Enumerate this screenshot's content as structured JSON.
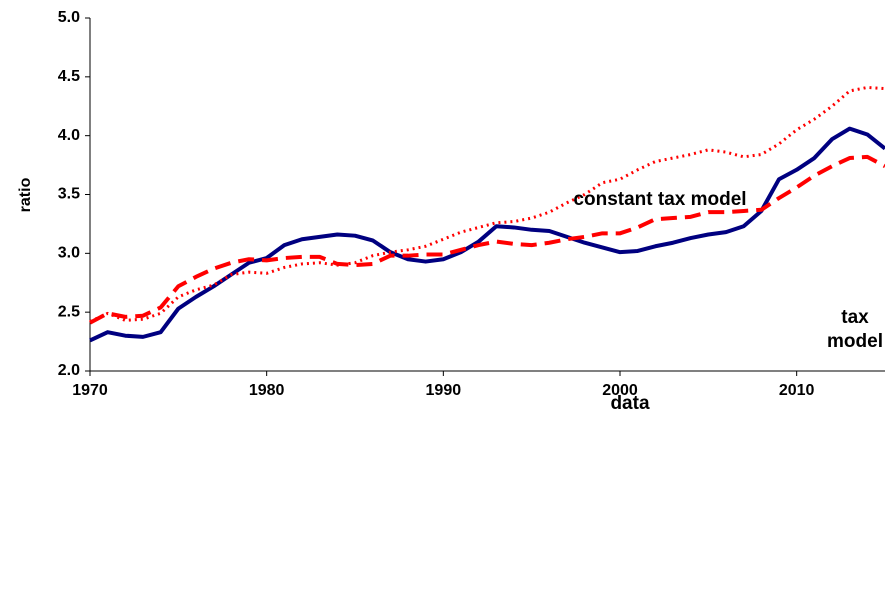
{
  "chart_data": {
    "type": "line",
    "y_label": "ratio",
    "x": [
      1970,
      1971,
      1972,
      1973,
      1974,
      1975,
      1976,
      1977,
      1978,
      1979,
      1980,
      1981,
      1982,
      1983,
      1984,
      1985,
      1986,
      1987,
      1988,
      1989,
      1990,
      1991,
      1992,
      1993,
      1994,
      1995,
      1996,
      1997,
      1998,
      1999,
      2000,
      2001,
      2002,
      2003,
      2004,
      2005,
      2006,
      2007,
      2008,
      2009,
      2010,
      2011,
      2012,
      2013,
      2014,
      2015
    ],
    "series": [
      {
        "name": "data",
        "color": "#000080",
        "style": "solid",
        "values": [
          2.26,
          2.33,
          2.3,
          2.29,
          2.33,
          2.53,
          2.63,
          2.72,
          2.82,
          2.92,
          2.96,
          3.07,
          3.12,
          3.14,
          3.16,
          3.15,
          3.11,
          3.01,
          2.95,
          2.93,
          2.95,
          3.01,
          3.1,
          3.23,
          3.22,
          3.2,
          3.19,
          3.14,
          3.09,
          3.05,
          3.01,
          3.02,
          3.06,
          3.09,
          3.13,
          3.16,
          3.18,
          3.23,
          3.36,
          3.63,
          3.71,
          3.81,
          3.97,
          4.06,
          4.01,
          3.89
        ]
      },
      {
        "name": "tax model",
        "color": "#ff0000",
        "style": "dashed",
        "values": [
          2.41,
          2.49,
          2.46,
          2.47,
          2.54,
          2.72,
          2.8,
          2.87,
          2.92,
          2.95,
          2.94,
          2.96,
          2.97,
          2.97,
          2.91,
          2.9,
          2.91,
          2.98,
          2.98,
          2.99,
          2.99,
          3.03,
          3.07,
          3.1,
          3.08,
          3.07,
          3.09,
          3.12,
          3.14,
          3.17,
          3.17,
          3.22,
          3.29,
          3.3,
          3.31,
          3.35,
          3.35,
          3.36,
          3.37,
          3.47,
          3.56,
          3.66,
          3.74,
          3.81,
          3.82,
          3.74
        ]
      },
      {
        "name": "constant tax model",
        "color": "#ff0000",
        "style": "dotted",
        "values": [
          2.42,
          2.49,
          2.43,
          2.44,
          2.49,
          2.63,
          2.69,
          2.73,
          2.82,
          2.84,
          2.83,
          2.88,
          2.91,
          2.92,
          2.9,
          2.92,
          2.98,
          3.01,
          3.03,
          3.06,
          3.12,
          3.18,
          3.22,
          3.26,
          3.27,
          3.3,
          3.35,
          3.43,
          3.5,
          3.6,
          3.63,
          3.71,
          3.78,
          3.81,
          3.84,
          3.88,
          3.86,
          3.82,
          3.84,
          3.93,
          4.05,
          4.14,
          4.25,
          4.38,
          4.41,
          4.4
        ]
      }
    ],
    "xlim": [
      1970,
      2015
    ],
    "xticks": [
      1970,
      1980,
      1990,
      2000,
      2010
    ],
    "ylim": [
      2,
      5
    ],
    "yticks": [
      {
        "value": 2,
        "label": "2.0"
      },
      {
        "value": 2.5,
        "label": "2.5"
      },
      {
        "value": 3,
        "label": "3.0"
      },
      {
        "value": 3.5,
        "label": "3.5"
      },
      {
        "value": 4,
        "label": "4.0"
      },
      {
        "value": 4.5,
        "label": "4.5"
      },
      {
        "value": 5,
        "label": "5.0"
      }
    ],
    "grid": false
  }
}
